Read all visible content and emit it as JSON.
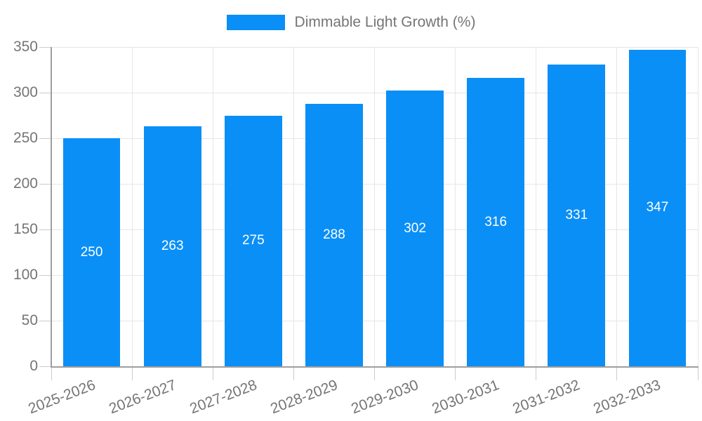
{
  "legend": {
    "label": "Dimmable Light Growth (%)"
  },
  "chart_data": {
    "type": "bar",
    "title": "Dimmable Light Growth (%)",
    "series_name": "Dimmable Light Growth (%)",
    "categories": [
      "2025-2026",
      "2026-2027",
      "2027-2028",
      "2028-2029",
      "2029-2030",
      "2030-2031",
      "2031-2032",
      "2032-2033"
    ],
    "values": [
      250,
      263,
      275,
      288,
      302,
      316,
      331,
      347
    ],
    "xlabel": "",
    "ylabel": "",
    "ylim": [
      0,
      350
    ],
    "yticks": [
      0,
      50,
      100,
      150,
      200,
      250,
      300,
      350
    ],
    "grid": true,
    "legend_position": "top-center",
    "bar_label_position": "inside-center",
    "colors": {
      "bar": "#0a8ff7",
      "bar_label": "#ffffff",
      "axis_text": "#757575",
      "axis_line": "#9e9e9e",
      "gridline": "#e6e6e6",
      "tick": "#cccccc",
      "background": "#ffffff"
    }
  }
}
